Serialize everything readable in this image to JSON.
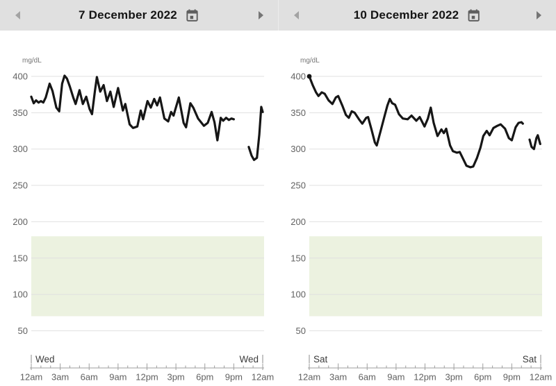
{
  "colors": {
    "header_bg": "#e0e0e0",
    "title": "#141414",
    "arrow_left": "#a3a3a3",
    "arrow_right": "#757575",
    "icon": "#5f5f5f",
    "line": "#161616",
    "grid": "#e0e0e0",
    "band": "#ecf2e0",
    "axis": "#9e9e9e",
    "tick_label": "#616161",
    "unit_label": "#757575",
    "day_label": "#3c3c3c"
  },
  "chart_data": [
    {
      "type": "line",
      "title": "7 December 2022",
      "unit": "mg/dL",
      "day_start": "Wed",
      "day_end": "Wed",
      "yticks": [
        400,
        350,
        300,
        250,
        200,
        150,
        100,
        50
      ],
      "ylim": [
        40,
        420
      ],
      "xtick_labels": [
        "12am",
        "3am",
        "6am",
        "9am",
        "12pm",
        "3pm",
        "6pm",
        "9pm",
        "12am"
      ],
      "x_hours_range": [
        0,
        24
      ],
      "target_range": {
        "low": 70,
        "high": 180
      },
      "grid": "on",
      "start_dot": false,
      "segments": [
        [
          [
            0,
            372
          ],
          [
            0.25,
            363
          ],
          [
            0.5,
            367
          ],
          [
            0.75,
            364
          ],
          [
            1.0,
            366
          ],
          [
            1.25,
            364
          ],
          [
            1.5,
            371
          ],
          [
            1.9,
            390
          ],
          [
            2.2,
            380
          ],
          [
            2.6,
            357
          ],
          [
            2.9,
            352
          ],
          [
            3.2,
            390
          ],
          [
            3.45,
            401
          ],
          [
            3.7,
            397
          ],
          [
            4.0,
            386
          ],
          [
            4.35,
            371
          ],
          [
            4.6,
            362
          ],
          [
            5.0,
            381
          ],
          [
            5.35,
            362
          ],
          [
            5.7,
            372
          ],
          [
            6.05,
            355
          ],
          [
            6.3,
            348
          ],
          [
            6.6,
            380
          ],
          [
            6.8,
            399
          ],
          [
            7.15,
            379
          ],
          [
            7.5,
            388
          ],
          [
            7.85,
            366
          ],
          [
            8.2,
            379
          ],
          [
            8.55,
            358
          ],
          [
            9.0,
            384
          ],
          [
            9.5,
            353
          ],
          [
            9.75,
            362
          ],
          [
            10.2,
            334
          ],
          [
            10.55,
            329
          ],
          [
            11.0,
            331
          ],
          [
            11.35,
            353
          ],
          [
            11.6,
            341
          ],
          [
            12.05,
            366
          ],
          [
            12.4,
            357
          ],
          [
            12.75,
            369
          ],
          [
            13.05,
            360
          ],
          [
            13.35,
            371
          ],
          [
            13.8,
            342
          ],
          [
            14.2,
            338
          ],
          [
            14.5,
            351
          ],
          [
            14.75,
            346
          ],
          [
            15.3,
            371
          ],
          [
            15.8,
            336
          ],
          [
            16.05,
            330
          ],
          [
            16.5,
            363
          ],
          [
            16.8,
            357
          ],
          [
            17.3,
            342
          ],
          [
            17.9,
            332
          ],
          [
            18.3,
            336
          ],
          [
            18.7,
            351
          ],
          [
            19.0,
            337
          ],
          [
            19.3,
            312
          ],
          [
            19.65,
            343
          ],
          [
            19.9,
            339
          ],
          [
            20.2,
            343
          ],
          [
            20.5,
            340
          ],
          [
            20.75,
            342
          ],
          [
            21.0,
            341
          ]
        ],
        [
          [
            22.55,
            303
          ],
          [
            22.85,
            291
          ],
          [
            23.1,
            285
          ],
          [
            23.4,
            288
          ],
          [
            23.65,
            320
          ],
          [
            23.85,
            358
          ],
          [
            24,
            351
          ]
        ]
      ]
    },
    {
      "type": "line",
      "title": "10 December 2022",
      "unit": "mg/dL",
      "day_start": "Sat",
      "day_end": "Sat",
      "yticks": [
        400,
        350,
        300,
        250,
        200,
        150,
        100,
        50
      ],
      "ylim": [
        40,
        420
      ],
      "xtick_labels": [
        "12am",
        "3am",
        "6am",
        "9am",
        "12pm",
        "3pm",
        "6pm",
        "9pm",
        "12am"
      ],
      "x_hours_range": [
        0,
        24
      ],
      "target_range": {
        "low": 70,
        "high": 180
      },
      "grid": "on",
      "start_dot": true,
      "segments": [
        [
          [
            0,
            400
          ],
          [
            0.35,
            388
          ],
          [
            0.7,
            378
          ],
          [
            0.95,
            373
          ],
          [
            1.3,
            378
          ],
          [
            1.6,
            376
          ],
          [
            2.0,
            367
          ],
          [
            2.4,
            362
          ],
          [
            2.75,
            371
          ],
          [
            3.0,
            373
          ],
          [
            3.45,
            359
          ],
          [
            3.8,
            347
          ],
          [
            4.1,
            343
          ],
          [
            4.4,
            352
          ],
          [
            4.7,
            350
          ],
          [
            5.15,
            341
          ],
          [
            5.5,
            335
          ],
          [
            5.9,
            343
          ],
          [
            6.1,
            344
          ],
          [
            6.45,
            327
          ],
          [
            6.8,
            309
          ],
          [
            7.0,
            305
          ],
          [
            7.4,
            325
          ],
          [
            7.8,
            345
          ],
          [
            8.1,
            360
          ],
          [
            8.35,
            369
          ],
          [
            8.6,
            363
          ],
          [
            8.9,
            361
          ],
          [
            9.3,
            348
          ],
          [
            9.7,
            342
          ],
          [
            10.2,
            341
          ],
          [
            10.6,
            346
          ],
          [
            11.1,
            339
          ],
          [
            11.45,
            344
          ],
          [
            11.95,
            331
          ],
          [
            12.3,
            342
          ],
          [
            12.6,
            357
          ],
          [
            12.9,
            336
          ],
          [
            13.3,
            318
          ],
          [
            13.7,
            327
          ],
          [
            13.95,
            322
          ],
          [
            14.2,
            328
          ],
          [
            14.6,
            305
          ],
          [
            14.9,
            297
          ],
          [
            15.3,
            295
          ],
          [
            15.6,
            296
          ],
          [
            15.9,
            288
          ],
          [
            16.3,
            277
          ],
          [
            16.7,
            275
          ],
          [
            17.0,
            276
          ],
          [
            17.4,
            288
          ],
          [
            17.75,
            302
          ],
          [
            18.05,
            318
          ],
          [
            18.4,
            325
          ],
          [
            18.7,
            319
          ],
          [
            19.1,
            329
          ],
          [
            19.5,
            332
          ],
          [
            19.85,
            334
          ],
          [
            20.3,
            328
          ],
          [
            20.7,
            315
          ],
          [
            21.0,
            312
          ],
          [
            21.4,
            330
          ],
          [
            21.7,
            336
          ],
          [
            22.0,
            337
          ],
          [
            22.15,
            335
          ]
        ],
        [
          [
            22.85,
            313
          ],
          [
            23.05,
            303
          ],
          [
            23.3,
            300
          ],
          [
            23.55,
            315
          ],
          [
            23.7,
            319
          ],
          [
            23.95,
            307
          ]
        ]
      ]
    }
  ]
}
